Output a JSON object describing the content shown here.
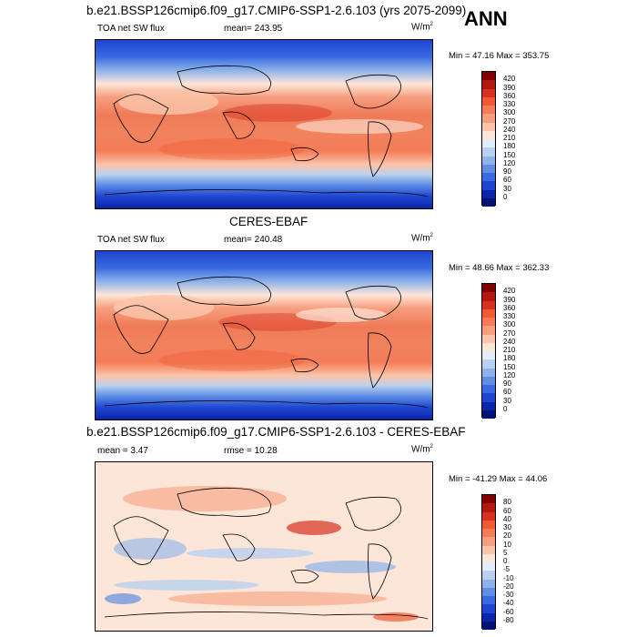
{
  "panel1": {
    "title": "b.e21.BSSP126cmip6.f09_g17.CMIP6-SSP1-2.6.103 (yrs 2075-2099)",
    "season": "ANN",
    "field": "TOA net SW flux",
    "mean": "mean= 243.95",
    "units": "W/m",
    "units_exp": "2",
    "minmax": "Min =  47.16 Max = 353.75",
    "colorbar": [
      "420",
      "390",
      "360",
      "330",
      "300",
      "270",
      "240",
      "210",
      "180",
      "150",
      "120",
      "90",
      "60",
      "30",
      "0"
    ]
  },
  "panel2": {
    "title": "CERES-EBAF",
    "field": "TOA net SW flux",
    "mean": "mean= 240.48",
    "units": "W/m",
    "units_exp": "2",
    "minmax": "Min =  48.66 Max = 362.33",
    "colorbar": [
      "420",
      "390",
      "360",
      "330",
      "300",
      "270",
      "240",
      "210",
      "180",
      "150",
      "120",
      "90",
      "60",
      "30",
      "0"
    ]
  },
  "panel3": {
    "title": "b.e21.BSSP126cmip6.f09_g17.CMIP6-SSP1-2.6.103 - CERES-EBAF",
    "mean": "mean =   3.47",
    "rmse": "rmse =  10.28",
    "units": "W/m",
    "units_exp": "2",
    "minmax": "Min = -41.29 Max =  44.06",
    "colorbar": [
      "80",
      "60",
      "40",
      "30",
      "20",
      "10",
      "5",
      "0",
      "-5",
      "-10",
      "-20",
      "-30",
      "-40",
      "-60",
      "-80"
    ]
  },
  "colors": {
    "abs_scale": [
      "#7f0000",
      "#b2180c",
      "#d7301f",
      "#ef5a35",
      "#f57c57",
      "#f79e7e",
      "#fbc4aa",
      "#fde6d8",
      "#e3edf9",
      "#b9d1f0",
      "#8db2ea",
      "#5f8fe3",
      "#386ae0",
      "#1e45d0",
      "#0b25a8",
      "#001273"
    ],
    "diff_scale": [
      "#7f0000",
      "#b2180c",
      "#d7301f",
      "#ef5a35",
      "#f57c57",
      "#f79e7e",
      "#fbc4aa",
      "#fde6d8",
      "#e3edf9",
      "#b9d1f0",
      "#8db2ea",
      "#5f8fe3",
      "#386ae0",
      "#1e45d0",
      "#0b25a8",
      "#001273"
    ]
  }
}
